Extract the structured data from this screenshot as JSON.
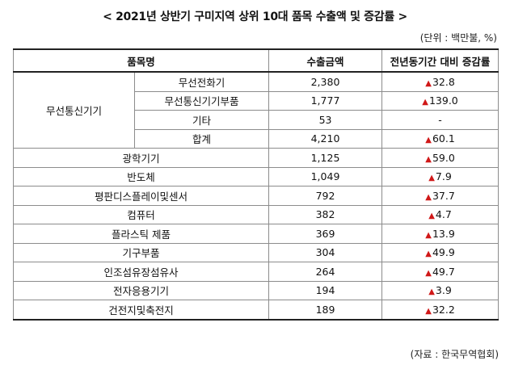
{
  "title": "< 2021년 상반기 구미지역 상위 10대 품목 수출액 및 증감률 >",
  "unit": "(단위 : 백만불, %)",
  "headers": {
    "item": "품목명",
    "export": "수출금액",
    "change": "전년동기간 대비 증감률"
  },
  "group": {
    "name": "무선통신기기",
    "rows": [
      {
        "sub": "무선전화기",
        "export": "2,380",
        "up": true,
        "change": "32.8"
      },
      {
        "sub": "무선통신기기부품",
        "export": "1,777",
        "up": true,
        "change": "139.0"
      },
      {
        "sub": "기타",
        "export": "53",
        "up": false,
        "change": "-"
      },
      {
        "sub": "합계",
        "export": "4,210",
        "up": true,
        "change": "60.1"
      }
    ]
  },
  "rows": [
    {
      "name": "광학기기",
      "export": "1,125",
      "change": "59.0"
    },
    {
      "name": "반도체",
      "export": "1,049",
      "change": "7.9"
    },
    {
      "name": "평판디스플레이및센서",
      "export": "792",
      "change": "37.7"
    },
    {
      "name": "컴퓨터",
      "export": "382",
      "change": "4.7"
    },
    {
      "name": "플라스틱 제품",
      "export": "369",
      "change": "13.9"
    },
    {
      "name": "기구부품",
      "export": "304",
      "change": "49.9"
    },
    {
      "name": "인조섬유장섬유사",
      "export": "264",
      "change": "49.7"
    },
    {
      "name": "전자응용기기",
      "export": "194",
      "change": "3.9"
    },
    {
      "name": "건전지및축전지",
      "export": "189",
      "change": "32.2"
    }
  ],
  "up_symbol": "▲",
  "source": "(자료 : 한국무역협회)"
}
